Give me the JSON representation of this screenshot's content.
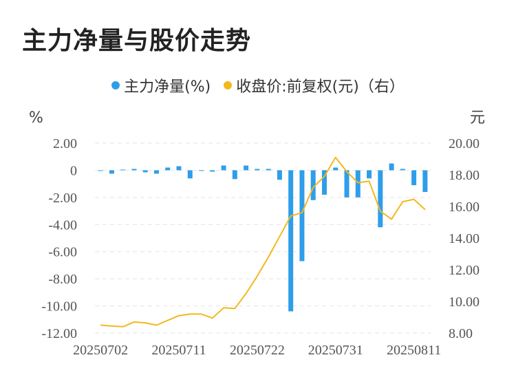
{
  "title": "主力净量与股价走势",
  "colors": {
    "bar": "#2E9EEA",
    "line": "#F2B81C",
    "grid": "#E3E3E3",
    "text": "#555555"
  },
  "chart_data": {
    "type": "bar+line",
    "legend_position": "top-center",
    "grid": true,
    "left_axis": {
      "unit": "%",
      "ticks": [
        2.0,
        0,
        -2.0,
        -4.0,
        -6.0,
        -8.0,
        -10.0,
        -12.0
      ],
      "tick_labels": [
        "2.00",
        "0",
        "-2.00",
        "-4.00",
        "-6.00",
        "-8.00",
        "-10.00",
        "-12.00"
      ],
      "range": [
        -12,
        2
      ]
    },
    "right_axis": {
      "unit": "元",
      "ticks": [
        20.0,
        18.0,
        16.0,
        14.0,
        12.0,
        10.0,
        8.0
      ],
      "tick_labels": [
        "20.00",
        "18.00",
        "16.00",
        "14.00",
        "12.00",
        "10.00",
        "8.00"
      ],
      "range": [
        8,
        20
      ]
    },
    "x_tick_labels": [
      {
        "index": 0,
        "label": "20250702"
      },
      {
        "index": 7,
        "label": "20250711"
      },
      {
        "index": 14,
        "label": "20250722"
      },
      {
        "index": 21,
        "label": "20250731"
      },
      {
        "index": 28,
        "label": "20250811"
      }
    ],
    "series": [
      {
        "name": "主力净量(%)",
        "type": "bar",
        "axis": "left",
        "values": [
          -0.05,
          -0.25,
          0.05,
          0.1,
          -0.15,
          -0.25,
          0.2,
          0.3,
          -0.6,
          -0.05,
          -0.1,
          0.35,
          -0.65,
          0.35,
          0.1,
          0.1,
          -0.7,
          -10.4,
          -6.7,
          -2.2,
          -1.8,
          0.2,
          -2.0,
          -2.0,
          -0.6,
          -4.2,
          0.5,
          0.1,
          -1.1,
          -1.6
        ]
      },
      {
        "name": "收盘价:前复权(元)（右）",
        "type": "line",
        "axis": "right",
        "values": [
          8.5,
          8.45,
          8.4,
          8.7,
          8.65,
          8.5,
          8.8,
          9.1,
          9.2,
          9.2,
          8.95,
          9.6,
          9.55,
          10.5,
          11.6,
          12.8,
          14.1,
          15.4,
          15.6,
          17.2,
          17.9,
          19.1,
          18.2,
          17.5,
          17.6,
          15.7,
          15.2,
          16.3,
          16.45,
          15.8
        ]
      }
    ]
  }
}
